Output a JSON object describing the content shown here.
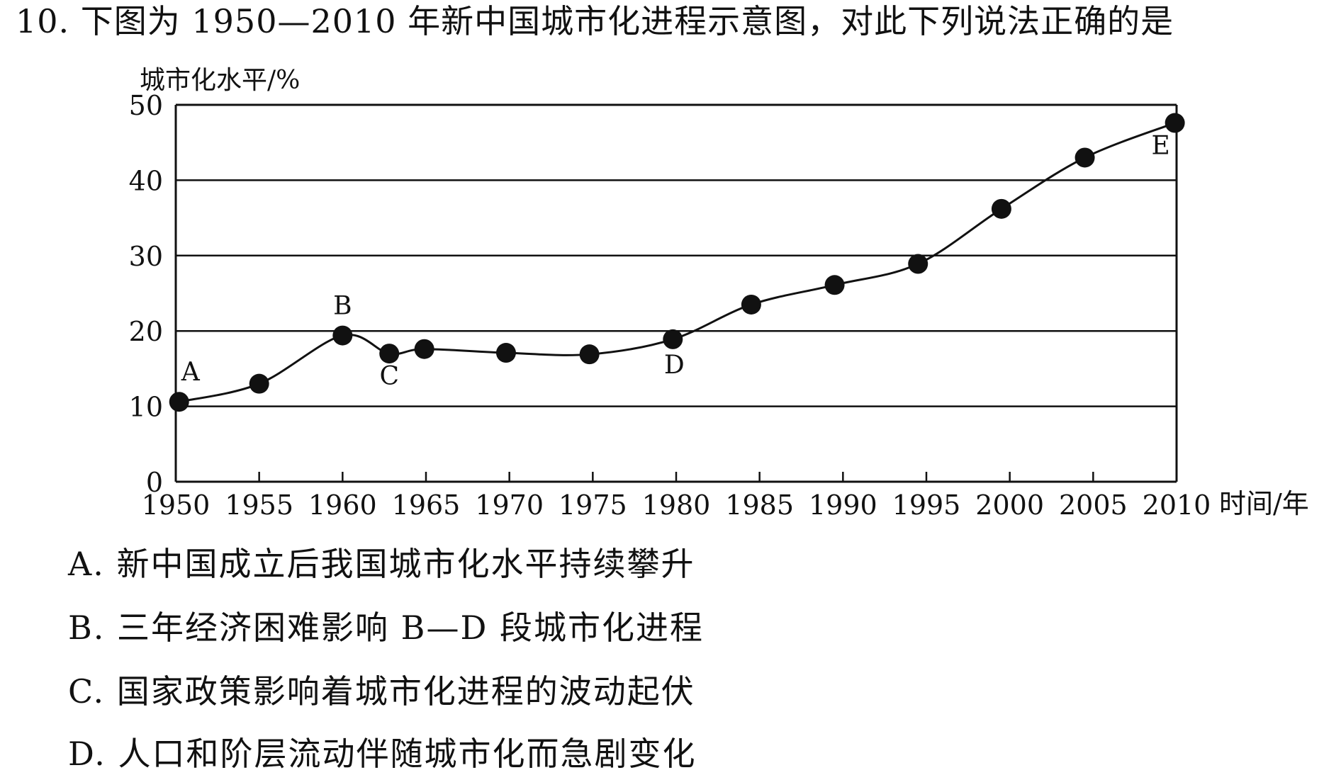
{
  "question": {
    "title": "10. 下图为 1950—2010 年新中国城市化进程示意图，对此下列说法正确的是",
    "options": [
      "A. 新中国成立后我国城市化水平持续攀升",
      "B. 三年经济困难影响 B—D 段城市化进程",
      "C. 国家政策影响着城市化进程的波动起伏",
      "D. 人口和阶层流动伴随城市化而急剧变化"
    ]
  },
  "chart_data": {
    "type": "line",
    "ylabel": "城市化水平/%",
    "xlabel": "时间/年",
    "xlim": [
      1950,
      2010
    ],
    "ylim": [
      0,
      50
    ],
    "x_ticks": [
      "1950",
      "1955",
      "1960",
      "1965",
      "1970",
      "1975",
      "1980",
      "1985",
      "1990",
      "1995",
      "2000",
      "2005",
      "2010"
    ],
    "y_ticks": [
      "0",
      "10",
      "20",
      "30",
      "40",
      "50"
    ],
    "grid": "horizontal",
    "line_color": "#111111",
    "marker_color": "#111111",
    "points": [
      {
        "x": 1950.2,
        "y": 10.6,
        "label": "A"
      },
      {
        "x": 1955.0,
        "y": 13.0,
        "label": ""
      },
      {
        "x": 1960.0,
        "y": 19.4,
        "label": "B"
      },
      {
        "x": 1962.8,
        "y": 17.0,
        "label": "C"
      },
      {
        "x": 1964.9,
        "y": 17.6,
        "label": ""
      },
      {
        "x": 1969.8,
        "y": 17.1,
        "label": ""
      },
      {
        "x": 1974.8,
        "y": 16.9,
        "label": ""
      },
      {
        "x": 1979.8,
        "y": 18.9,
        "label": "D"
      },
      {
        "x": 1984.5,
        "y": 23.5,
        "label": ""
      },
      {
        "x": 1989.5,
        "y": 26.1,
        "label": ""
      },
      {
        "x": 1994.5,
        "y": 28.9,
        "label": ""
      },
      {
        "x": 1999.5,
        "y": 36.2,
        "label": ""
      },
      {
        "x": 2004.5,
        "y": 43.0,
        "label": ""
      },
      {
        "x": 2009.9,
        "y": 47.6,
        "label": "E"
      }
    ]
  }
}
